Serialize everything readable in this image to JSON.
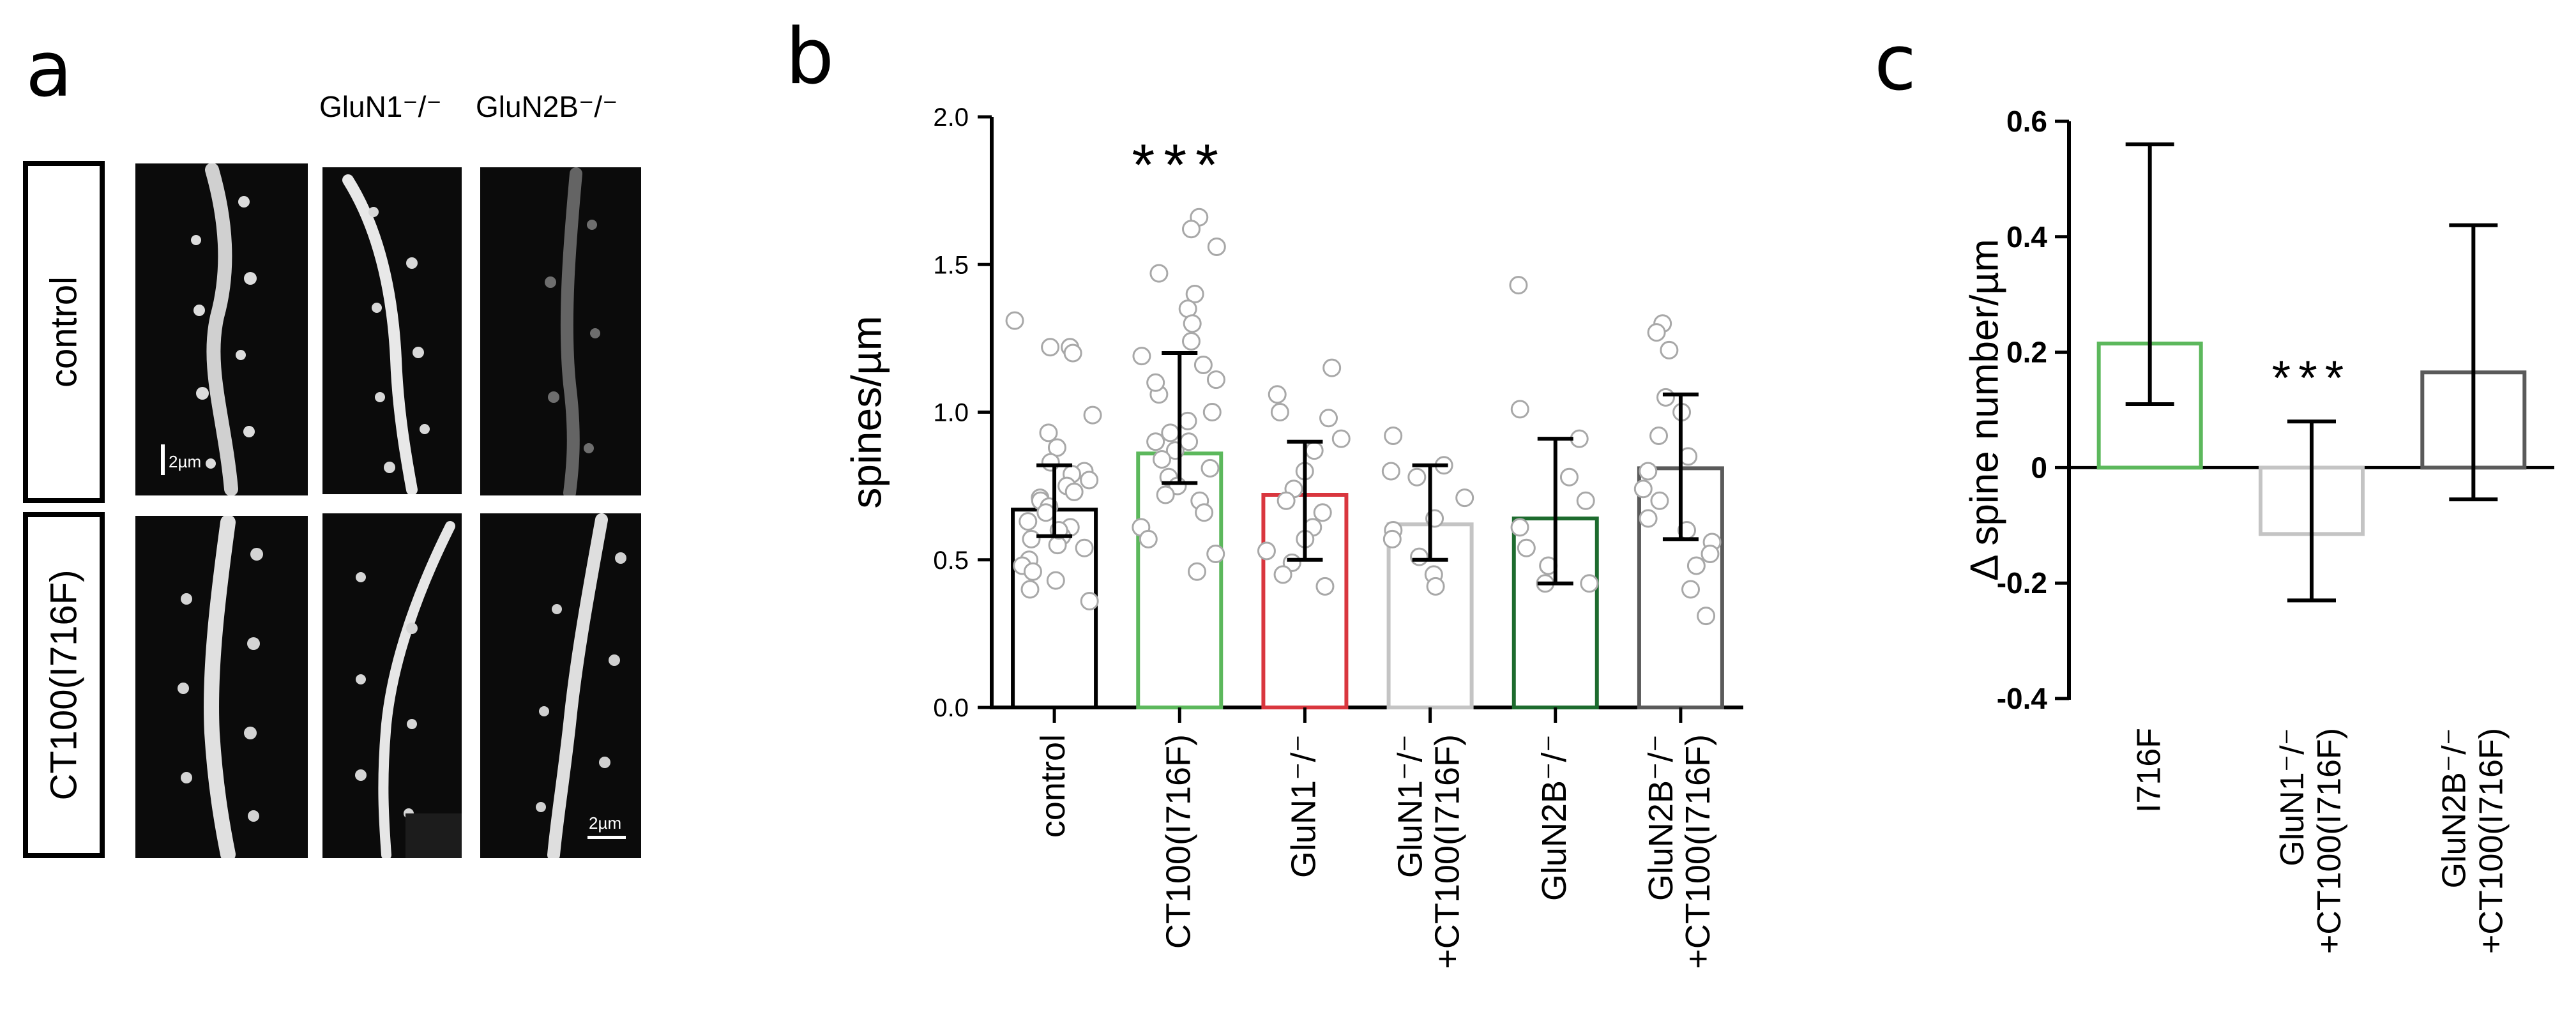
{
  "panel_a": {
    "letter": "a",
    "col_labels": [
      "GluN1⁻/⁻",
      "GluN2B⁻/⁻"
    ],
    "row_labels": [
      "control",
      "CT100(I716F)"
    ],
    "scale_label": "2µm",
    "scale_label_bottom": "2µm"
  },
  "panel_b": {
    "letter": "b",
    "significance": "***"
  },
  "panel_c": {
    "letter": "c",
    "significance": "***"
  },
  "colors": {
    "black": "#000000",
    "green": "#5cb85c",
    "red": "#d9363e",
    "lightgray": "#c4c4c4",
    "darkgreen": "#1d6b2e",
    "darkgray": "#5a5a5a",
    "point": "#a8a8a8"
  },
  "chart_data": [
    {
      "type": "bar",
      "panel": "b",
      "title": "",
      "xlabel": "",
      "ylabel": "spines/µm",
      "ylim": [
        0,
        2.0
      ],
      "yticks": [
        0.0,
        0.5,
        1.0,
        1.5,
        2.0
      ],
      "ytick_labels": [
        "0.0",
        "0.5",
        "1.0",
        "1.5",
        "2.0"
      ],
      "categories": [
        "control",
        "CT100(I716F)",
        "GluN1⁻/⁻",
        "GluN1⁻/⁻\n+CT100(I716F)",
        "GluN2B⁻/⁻",
        "GluN2B⁻/⁻\n+CT100(I716F)"
      ],
      "category_lines": [
        [
          "control"
        ],
        [
          "CT100(I716F)"
        ],
        [
          "GluN1⁻/⁻"
        ],
        [
          "GluN1⁻/⁻",
          "+CT100(I716F)"
        ],
        [
          "GluN2B⁻/⁻"
        ],
        [
          "GluN2B⁻/⁻",
          "+CT100(I716F)"
        ]
      ],
      "values": [
        0.67,
        0.86,
        0.72,
        0.62,
        0.64,
        0.81
      ],
      "err_low": [
        0.58,
        0.76,
        0.5,
        0.5,
        0.42,
        0.57
      ],
      "err_high": [
        0.82,
        1.2,
        0.9,
        0.82,
        0.91,
        1.06
      ],
      "bar_colors": [
        "#000000",
        "#5cb85c",
        "#d9363e",
        "#c4c4c4",
        "#1d6b2e",
        "#5a5a5a"
      ],
      "points": [
        [
          1.31,
          1.22,
          1.22,
          1.2,
          0.99,
          0.93,
          0.88,
          0.83,
          0.8,
          0.79,
          0.75,
          0.73,
          0.71,
          0.7,
          0.68,
          0.66,
          0.63,
          0.61,
          0.58,
          0.57,
          0.55,
          0.54,
          0.5,
          0.48,
          0.46,
          0.43,
          0.4,
          0.36,
          0.6,
          0.77
        ],
        [
          1.66,
          1.62,
          1.56,
          1.47,
          1.4,
          1.35,
          1.3,
          1.24,
          1.19,
          1.16,
          1.11,
          1.06,
          1.0,
          0.97,
          0.93,
          0.9,
          0.87,
          0.84,
          0.81,
          0.78,
          0.75,
          0.72,
          0.7,
          0.66,
          0.61,
          0.57,
          0.52,
          0.46,
          0.9,
          1.1
        ],
        [
          1.15,
          1.06,
          1.0,
          0.98,
          0.91,
          0.87,
          0.8,
          0.74,
          0.7,
          0.66,
          0.61,
          0.57,
          0.53,
          0.49,
          0.45,
          0.41
        ],
        [
          0.92,
          0.82,
          0.8,
          0.78,
          0.71,
          0.64,
          0.6,
          0.57,
          0.51,
          0.45,
          0.41
        ],
        [
          1.43,
          1.01,
          0.91,
          0.78,
          0.7,
          0.61,
          0.54,
          0.48,
          0.42,
          0.42
        ],
        [
          1.3,
          1.27,
          1.21,
          1.05,
          1.0,
          0.92,
          0.85,
          0.8,
          0.74,
          0.7,
          0.64,
          0.6,
          0.56,
          0.52,
          0.48,
          0.4,
          0.31
        ]
      ]
    },
    {
      "type": "bar",
      "panel": "c",
      "title": "",
      "xlabel": "",
      "ylabel": "Δ spine number/µm",
      "ylim": [
        -0.4,
        0.6
      ],
      "yticks": [
        -0.4,
        -0.2,
        0,
        0.2,
        0.4,
        0.6
      ],
      "ytick_labels": [
        "-0.4",
        "-0.2",
        "0",
        "0.2",
        "0.4",
        "0.6"
      ],
      "categories": [
        "I716F",
        "GluN1⁻/⁻\n+CT100(I716F)",
        "GluN2B⁻/⁻\n+CT100(I716F)"
      ],
      "category_lines": [
        [
          "I716F"
        ],
        [
          "GluN1⁻/⁻",
          "+CT100(I716F)"
        ],
        [
          "GluN2B⁻/⁻",
          "+CT100(I716F)"
        ]
      ],
      "values": [
        0.215,
        -0.115,
        0.165
      ],
      "err_low": [
        0.11,
        -0.23,
        -0.055
      ],
      "err_high": [
        0.56,
        0.08,
        0.42
      ],
      "bar_colors": [
        "#5cb85c",
        "#c4c4c4",
        "#5a5a5a"
      ]
    }
  ]
}
